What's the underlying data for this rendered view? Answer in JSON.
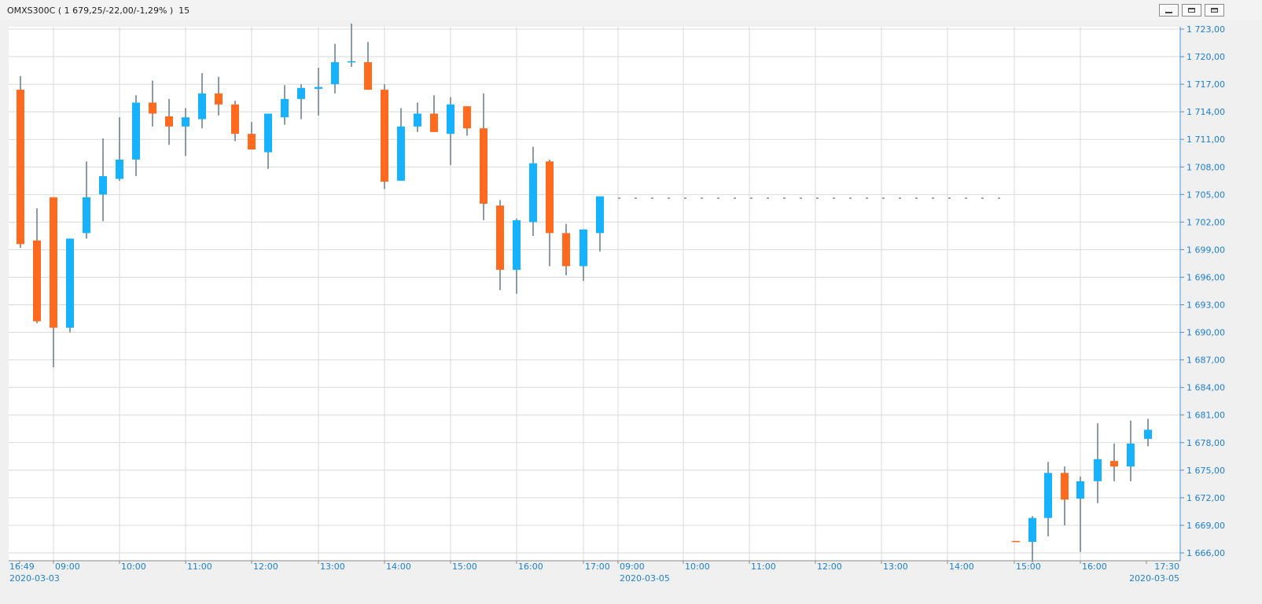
{
  "window": {
    "title": "OMXS300C ( 1 679,25/-22,00/-1,29% )  15",
    "buttons": [
      "minimize",
      "restore",
      "close"
    ]
  },
  "colors": {
    "up": "#17b2ff",
    "down": "#ff6a1f",
    "wick": "#708090",
    "axis_text": "#1c7fd1",
    "grid": "#d9d9d9"
  },
  "chart_data": {
    "type": "candlestick",
    "interval": "15",
    "y_range": [
      1665,
      1723.5
    ],
    "y_ticks": [
      "1 723,00",
      "1 720,00",
      "1 717,00",
      "1 714,00",
      "1 711,00",
      "1 708,00",
      "1 705,00",
      "1 702,00",
      "1 699,00",
      "1 696,00",
      "1 693,00",
      "1 690,00",
      "1 687,00",
      "1 684,00",
      "1 681,00",
      "1 678,00",
      "1 675,00",
      "1 672,00",
      "1 669,00",
      "1 666,00"
    ],
    "x_ticks": [
      {
        "time": "16:49",
        "date": "2020-03-03"
      },
      {
        "time": "09:00",
        "date": ""
      },
      {
        "time": "10:00",
        "date": ""
      },
      {
        "time": "11:00",
        "date": ""
      },
      {
        "time": "12:00",
        "date": ""
      },
      {
        "time": "13:00",
        "date": ""
      },
      {
        "time": "14:00",
        "date": ""
      },
      {
        "time": "15:00",
        "date": ""
      },
      {
        "time": "16:00",
        "date": ""
      },
      {
        "time": "17:00",
        "date": ""
      },
      {
        "time": "09:00",
        "date": "2020-03-05"
      },
      {
        "time": "10:00",
        "date": ""
      },
      {
        "time": "11:00",
        "date": ""
      },
      {
        "time": "12:00",
        "date": ""
      },
      {
        "time": "13:00",
        "date": ""
      },
      {
        "time": "14:00",
        "date": ""
      },
      {
        "time": "15:00",
        "date": ""
      },
      {
        "time": "16:00",
        "date": ""
      },
      {
        "time": "17:30",
        "date": "2020-03-05"
      }
    ],
    "reference_level": 1704.6,
    "candles": [
      {
        "o": 1716.4,
        "h": 1717.9,
        "l": 1699.2,
        "c": 1699.6
      },
      {
        "o": 1700.0,
        "h": 1703.5,
        "l": 1691.0,
        "c": 1691.2
      },
      {
        "o": 1704.7,
        "h": 1704.7,
        "l": 1686.2,
        "c": 1690.5
      },
      {
        "o": 1690.5,
        "h": 1700.2,
        "l": 1690.0,
        "c": 1700.2
      },
      {
        "o": 1700.8,
        "h": 1708.6,
        "l": 1700.2,
        "c": 1704.7
      },
      {
        "o": 1705.0,
        "h": 1711.1,
        "l": 1702.1,
        "c": 1707.0
      },
      {
        "o": 1706.7,
        "h": 1713.4,
        "l": 1706.5,
        "c": 1708.8
      },
      {
        "o": 1708.8,
        "h": 1715.8,
        "l": 1707.0,
        "c": 1715.0
      },
      {
        "o": 1715.0,
        "h": 1717.4,
        "l": 1712.4,
        "c": 1713.8
      },
      {
        "o": 1713.5,
        "h": 1715.4,
        "l": 1710.4,
        "c": 1712.4
      },
      {
        "o": 1712.4,
        "h": 1714.4,
        "l": 1709.2,
        "c": 1713.4
      },
      {
        "o": 1713.2,
        "h": 1718.2,
        "l": 1712.2,
        "c": 1716.0
      },
      {
        "o": 1716.0,
        "h": 1717.8,
        "l": 1713.6,
        "c": 1714.8
      },
      {
        "o": 1714.8,
        "h": 1715.2,
        "l": 1710.8,
        "c": 1711.6
      },
      {
        "o": 1711.6,
        "h": 1712.9,
        "l": 1709.9,
        "c": 1709.9
      },
      {
        "o": 1709.6,
        "h": 1713.8,
        "l": 1707.8,
        "c": 1713.8
      },
      {
        "o": 1713.4,
        "h": 1716.9,
        "l": 1712.6,
        "c": 1715.4
      },
      {
        "o": 1715.4,
        "h": 1717.0,
        "l": 1713.2,
        "c": 1716.6
      },
      {
        "o": 1716.5,
        "h": 1718.8,
        "l": 1713.6,
        "c": 1716.7
      },
      {
        "o": 1717.0,
        "h": 1721.4,
        "l": 1716.0,
        "c": 1719.4
      },
      {
        "o": 1719.5,
        "h": 1723.6,
        "l": 1718.9,
        "c": 1719.5
      },
      {
        "o": 1719.4,
        "h": 1721.6,
        "l": 1716.4,
        "c": 1716.4
      },
      {
        "o": 1716.4,
        "h": 1717.0,
        "l": 1705.6,
        "c": 1706.4
      },
      {
        "o": 1706.5,
        "h": 1714.4,
        "l": 1706.5,
        "c": 1712.4
      },
      {
        "o": 1712.4,
        "h": 1715.0,
        "l": 1711.8,
        "c": 1713.8
      },
      {
        "o": 1713.8,
        "h": 1715.8,
        "l": 1711.8,
        "c": 1711.8
      },
      {
        "o": 1711.6,
        "h": 1715.6,
        "l": 1708.2,
        "c": 1714.8
      },
      {
        "o": 1714.6,
        "h": 1714.6,
        "l": 1711.4,
        "c": 1712.2
      },
      {
        "o": 1712.2,
        "h": 1716.0,
        "l": 1702.2,
        "c": 1704.0
      },
      {
        "o": 1703.8,
        "h": 1704.4,
        "l": 1694.6,
        "c": 1696.8
      },
      {
        "o": 1696.8,
        "h": 1702.4,
        "l": 1694.2,
        "c": 1702.2
      },
      {
        "o": 1702.0,
        "h": 1710.2,
        "l": 1700.5,
        "c": 1708.4
      },
      {
        "o": 1708.6,
        "h": 1708.8,
        "l": 1697.2,
        "c": 1700.8
      },
      {
        "o": 1700.8,
        "h": 1701.8,
        "l": 1696.2,
        "c": 1697.2
      },
      {
        "o": 1697.2,
        "h": 1701.2,
        "l": 1695.6,
        "c": 1701.2
      },
      {
        "o": 1700.8,
        "h": 1704.8,
        "l": 1698.8,
        "c": 1704.8
      },
      {
        "o": 1667.3,
        "h": 1667.3,
        "l": 1667.2,
        "c": 1667.2
      },
      {
        "o": 1667.2,
        "h": 1670.0,
        "l": 1665.0,
        "c": 1669.8
      },
      {
        "o": 1669.8,
        "h": 1675.9,
        "l": 1667.8,
        "c": 1674.7
      },
      {
        "o": 1674.7,
        "h": 1675.4,
        "l": 1669.0,
        "c": 1671.8
      },
      {
        "o": 1671.9,
        "h": 1674.3,
        "l": 1666.1,
        "c": 1673.8
      },
      {
        "o": 1673.8,
        "h": 1680.1,
        "l": 1671.4,
        "c": 1676.2
      },
      {
        "o": 1676.0,
        "h": 1677.9,
        "l": 1673.8,
        "c": 1675.4
      },
      {
        "o": 1675.4,
        "h": 1680.4,
        "l": 1673.8,
        "c": 1677.9
      },
      {
        "o": 1678.4,
        "h": 1680.6,
        "l": 1677.6,
        "c": 1679.4
      }
    ]
  }
}
